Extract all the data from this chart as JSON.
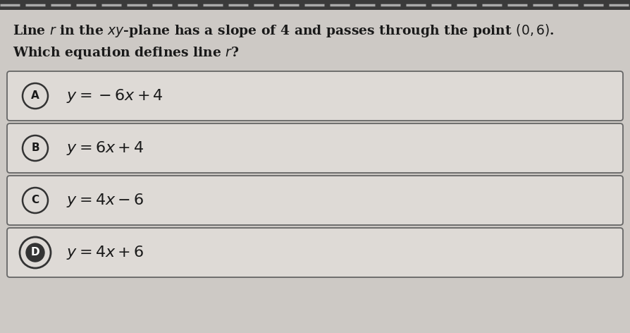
{
  "question_line1": "Line $r$ in the $xy$-plane has a slope of 4 and passes through the point $(0, 6)$.",
  "question_line2": "Which equation defines line $r$?",
  "choices": [
    {
      "label": "A",
      "equation": "$y = -6x + 4$",
      "selected": false
    },
    {
      "label": "B",
      "equation": "$y = 6x + 4$",
      "selected": false
    },
    {
      "label": "C",
      "equation": "$y = 4x - 6$",
      "selected": false
    },
    {
      "label": "D",
      "equation": "$y = 4x + 6$",
      "selected": true
    }
  ],
  "bg_color": "#cdc9c5",
  "box_bg_color": "#dedad6",
  "box_edge_color": "#666666",
  "text_color": "#1a1a1a",
  "circle_edge_color": "#333333",
  "top_bar_color": "#3a3a3a",
  "dash_color": "#888888"
}
